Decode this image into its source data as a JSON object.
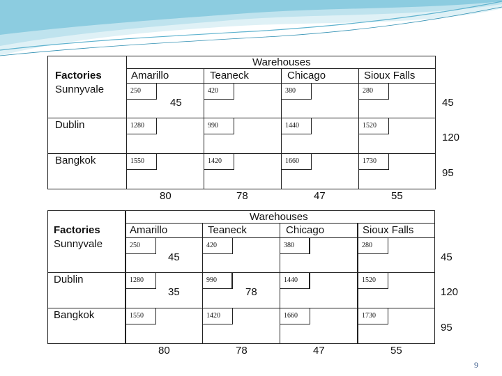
{
  "slide": {
    "page_number": "9",
    "accent_colors": [
      "#bfe3ee",
      "#5fb3cf",
      "#2f8fb2"
    ]
  },
  "table1": {
    "title": "Warehouses",
    "corner_label": "Factories",
    "warehouses": [
      "Amarillo",
      "Teaneck",
      "Chicago",
      "Sioux Falls"
    ],
    "factories": [
      "Sunnyvale",
      "Dublin",
      "Bangkok"
    ],
    "costs": [
      [
        "250",
        "420",
        "380",
        "280"
      ],
      [
        "1280",
        "990",
        "1440",
        "1520"
      ],
      [
        "1550",
        "1420",
        "1660",
        "1730"
      ]
    ],
    "supply": [
      "45",
      "120",
      "95"
    ],
    "demand": [
      "80",
      "78",
      "47",
      "55"
    ],
    "allocations": {
      "r0c0": "45"
    }
  },
  "table2": {
    "title": "Warehouses",
    "corner_label": "Factories",
    "warehouses": [
      "Amarillo",
      "Teaneck",
      "Chicago",
      "Sioux Falls"
    ],
    "factories": [
      "Sunnyvale",
      "Dublin",
      "Bangkok"
    ],
    "costs": [
      [
        "250",
        "420",
        "380",
        "280"
      ],
      [
        "1280",
        "990",
        "1440",
        "1520"
      ],
      [
        "1550",
        "1420",
        "1660",
        "1730"
      ]
    ],
    "supply": [
      "45",
      "120",
      "95"
    ],
    "demand": [
      "80",
      "78",
      "47",
      "55"
    ],
    "allocations": {
      "r0c0": "45",
      "r1c0": "35",
      "r1c1": "78"
    }
  }
}
